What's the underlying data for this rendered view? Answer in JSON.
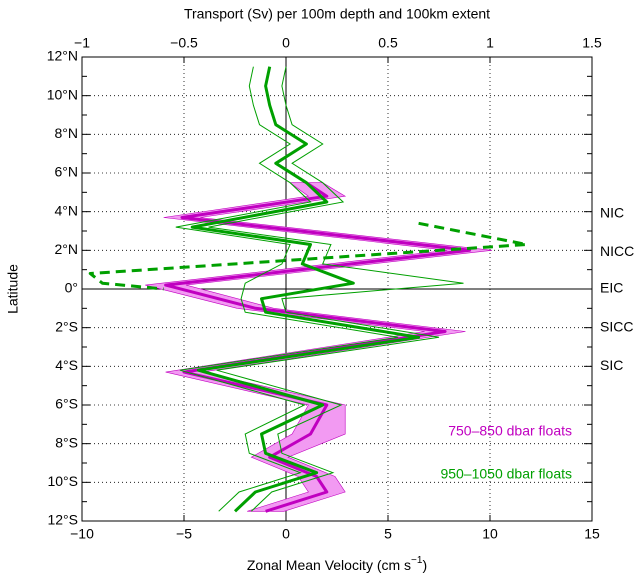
{
  "chart_data": {
    "type": "line",
    "top_axis_label": "Transport (Sv) per 100m depth and 100km extent",
    "xlabel": {
      "text": "Zonal Mean Velocity (cm s",
      "sup": "−1",
      "end": ")"
    },
    "ylabel": "Latitude",
    "xlim": [
      -10,
      15
    ],
    "xticks": [
      {
        "value": -10,
        "label": "−10"
      },
      {
        "value": -5,
        "label": "−5"
      },
      0,
      5,
      10,
      15
    ],
    "x2lim": [
      -1,
      1.5
    ],
    "x2ticks": [
      {
        "value": -1,
        "label": "−1"
      },
      {
        "value": -0.5,
        "label": "−0.5"
      },
      0,
      0.5,
      1,
      1.5
    ],
    "ylim": [
      -12,
      12
    ],
    "yticks": [
      {
        "value": -12,
        "label": "12°S"
      },
      {
        "value": -10,
        "label": "10°S"
      },
      {
        "value": -8,
        "label": "8°S"
      },
      {
        "value": -6,
        "label": "6°S"
      },
      {
        "value": -4,
        "label": "4°S"
      },
      {
        "value": -2,
        "label": "2°S"
      },
      {
        "value": 0,
        "label": "0°"
      },
      {
        "value": 2,
        "label": "2°N"
      },
      {
        "value": 4,
        "label": "4°N"
      },
      {
        "value": 6,
        "label": "6°N"
      },
      {
        "value": 8,
        "label": "8°N"
      },
      {
        "value": 10,
        "label": "10°N"
      },
      {
        "value": 12,
        "label": "12°N"
      }
    ],
    "yminor_ticks": [
      -11,
      -9,
      -7,
      -5,
      -3,
      -1,
      1,
      3,
      5,
      7,
      9,
      11
    ],
    "grid": true,
    "annotations": [
      {
        "text": "NIC",
        "y": 3.9
      },
      {
        "text": "NICC",
        "y": 1.9
      },
      {
        "text": "EIC",
        "y": 0
      },
      {
        "text": "SICC",
        "y": -2
      },
      {
        "text": "SIC",
        "y": -4
      }
    ],
    "series": [
      {
        "name": "750–850 dbar floats",
        "color": "#c000c0",
        "band_color": "#f29af2",
        "y": [
          5.5,
          4.8,
          3.7,
          2.0,
          0.2,
          -1.0,
          -2.2,
          -4.3,
          -6.0,
          -7.5,
          -8.7,
          -9.7,
          -10.5,
          -11.5
        ],
        "values": [
          1.0,
          2.0,
          -5.1,
          9.0,
          -5.9,
          -1.5,
          7.8,
          -5.0,
          2.0,
          1.2,
          -0.8,
          1.5,
          2.0,
          -1.0
        ],
        "lower": [
          0.2,
          1.1,
          -6.0,
          7.9,
          -6.9,
          -2.4,
          6.8,
          -5.9,
          1.1,
          0.3,
          -1.7,
          0.6,
          1.1,
          -1.9
        ],
        "upper": [
          1.8,
          2.9,
          -4.2,
          10.1,
          -4.9,
          -0.6,
          8.8,
          -4.1,
          2.9,
          2.9,
          0.1,
          2.4,
          2.9,
          -0.1
        ]
      },
      {
        "name": "950–1050 dbar floats",
        "color": "#00a000",
        "y": [
          11.5,
          10.5,
          9.5,
          8.5,
          7.5,
          6.5,
          5.5,
          4.5,
          3.2,
          2.3,
          1.3,
          0.3,
          -0.5,
          -1.2,
          -2.5,
          -4.2,
          -6.0,
          -7.5,
          -8.5,
          -9.5,
          -10.5,
          -11.5
        ],
        "values": [
          -0.8,
          -1.0,
          -0.8,
          -0.5,
          1.0,
          -0.5,
          1.0,
          2.0,
          -4.6,
          1.2,
          0.8,
          3.3,
          -1.2,
          -1.0,
          6.5,
          -4.3,
          1.8,
          -1.2,
          -1.0,
          1.5,
          -1.5,
          -2.5
        ],
        "lower": [
          -1.6,
          -1.8,
          -1.6,
          -1.3,
          0.2,
          -1.3,
          0.2,
          1.2,
          -5.4,
          0.2,
          -0.2,
          -2.0,
          -2.2,
          -2.0,
          5.5,
          -5.2,
          0.9,
          -2.0,
          -1.8,
          0.7,
          -2.3,
          -3.3
        ],
        "upper": [
          0.0,
          -0.2,
          0.0,
          0.3,
          1.8,
          0.3,
          1.8,
          2.8,
          -3.8,
          2.2,
          1.8,
          8.7,
          -0.2,
          0.0,
          7.5,
          -3.4,
          2.7,
          -0.4,
          -0.2,
          2.3,
          -0.7,
          -1.7
        ]
      },
      {
        "color": "#00a000",
        "dash": true,
        "y": [
          3.4,
          2.3,
          0.8,
          0.3,
          0.0
        ],
        "values": [
          6.5,
          11.8,
          -9.6,
          -9.0,
          -6.0
        ]
      }
    ]
  }
}
